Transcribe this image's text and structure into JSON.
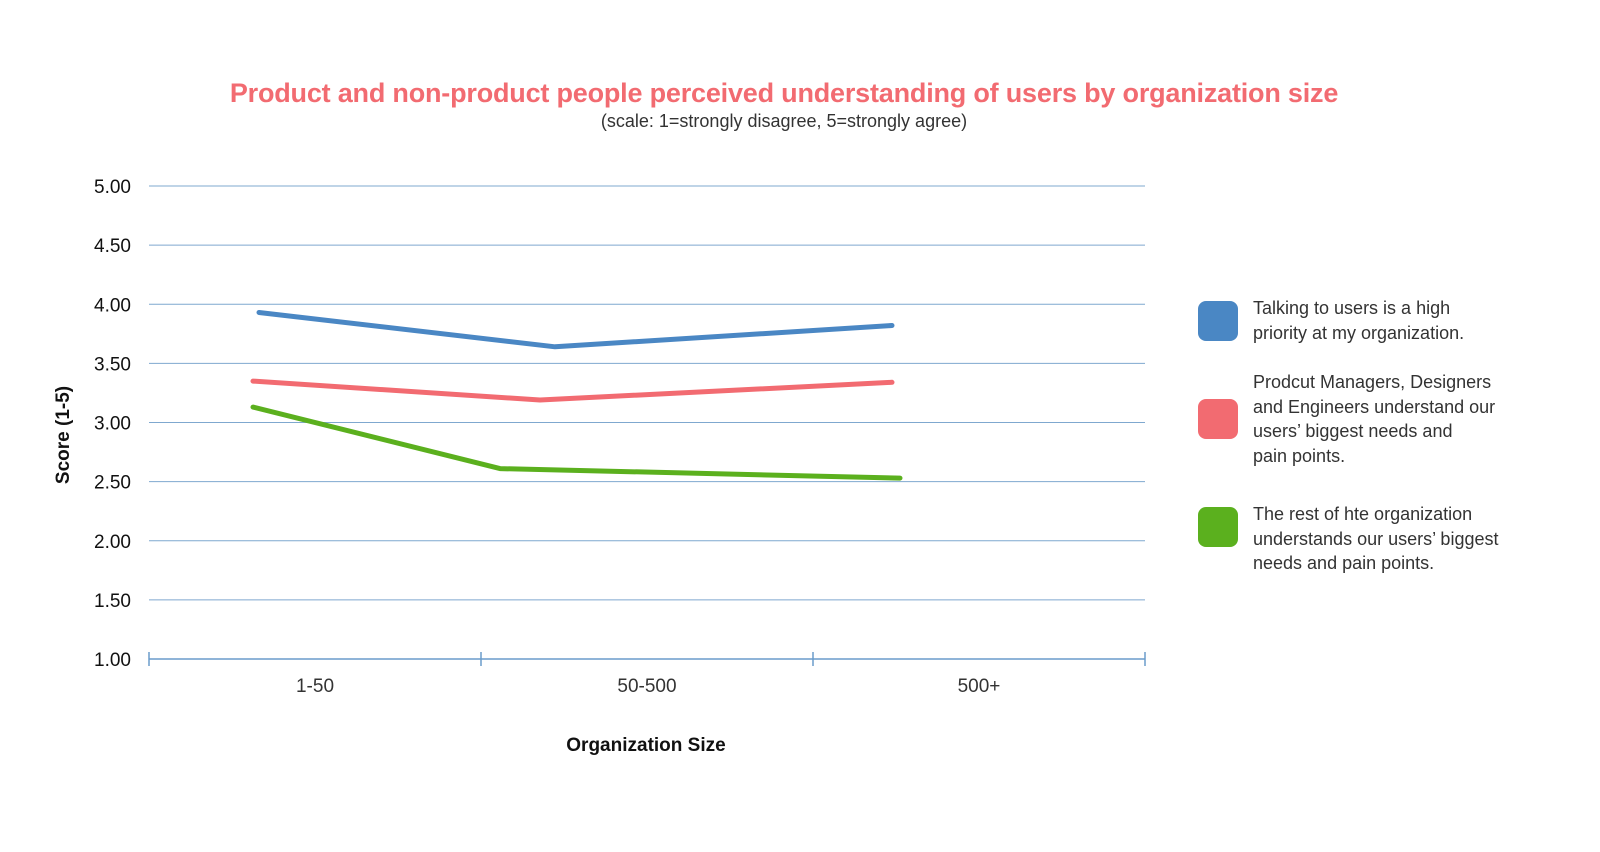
{
  "chart_data": {
    "type": "line",
    "title": "Product and non-product people perceived understanding of users by organization size",
    "subtitle": "(scale: 1=strongly disagree, 5=strongly agree)",
    "xlabel": "Organization Size",
    "ylabel": "Score (1-5)",
    "categories": [
      "1-50",
      "50-500",
      "500+"
    ],
    "ylim": [
      1.0,
      5.0
    ],
    "yticks": [
      "1.00",
      "1.50",
      "2.00",
      "2.50",
      "3.00",
      "3.50",
      "4.00",
      "4.50",
      "5.00"
    ],
    "grid": true,
    "legend_position": "right",
    "series": [
      {
        "name": "Talking to users is a high\npriority at my organization.",
        "color": "#4a87c4",
        "values": [
          3.93,
          3.64,
          3.82
        ]
      },
      {
        "name": "Prodcut Managers, Designers\nand Engineers understand our\nusers’ biggest needs and\npain points.",
        "color": "#f26b71",
        "values": [
          3.35,
          3.19,
          3.34
        ]
      },
      {
        "name": "The rest of hte organization\nunderstands our users’ biggest\nneeds and pain points.",
        "color": "#5bb01e",
        "values": [
          3.13,
          2.61,
          2.53
        ]
      }
    ]
  }
}
